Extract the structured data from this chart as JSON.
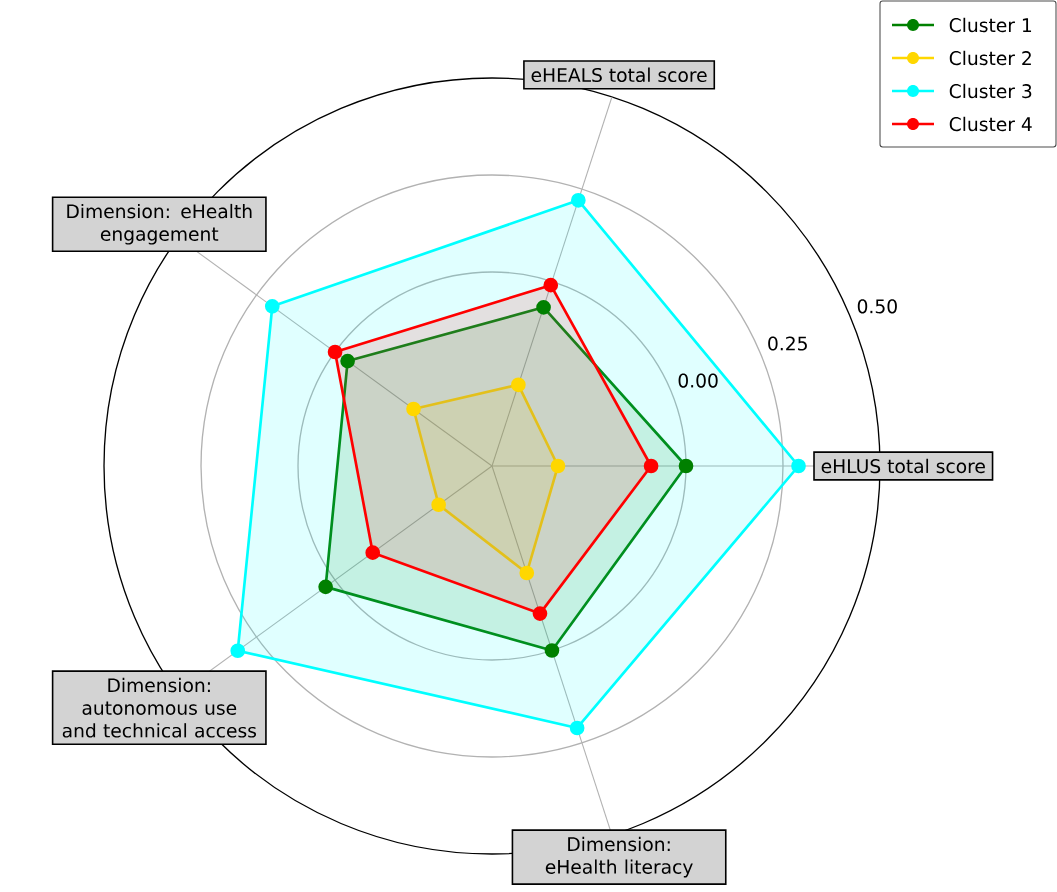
{
  "chart_data": {
    "type": "radar",
    "categories": [
      "eHEALS total score",
      "eHLUS total score",
      "Dimension: eHealth literacy",
      "Dimension: autonomous use and technical access",
      "Dimension: eHealth engagement"
    ],
    "series": [
      {
        "name": "Cluster 1",
        "color": "#008000",
        "values": [
          -0.07,
          0.0,
          0.0,
          0.03,
          -0.04
        ]
      },
      {
        "name": "Cluster 2",
        "color": "#ffd700",
        "values": [
          -0.28,
          -0.33,
          -0.21,
          -0.33,
          -0.25
        ]
      },
      {
        "name": "Cluster 3",
        "color": "#00ffff",
        "values": [
          0.22,
          0.29,
          0.21,
          0.31,
          0.2
        ]
      },
      {
        "name": "Cluster 4",
        "color": "#ff0000",
        "values": [
          -0.01,
          -0.09,
          -0.1,
          -0.12,
          0.0
        ]
      }
    ],
    "ylim": [
      -0.5,
      0.5
    ],
    "yticks": [
      {
        "value": 0,
        "label": "0.00"
      },
      {
        "value": 0.25,
        "label": "0.25"
      },
      {
        "value": 0.5,
        "label": "0.50"
      }
    ],
    "grid": true,
    "legend": "top right",
    "marker": "circle",
    "line_style": "solid"
  }
}
